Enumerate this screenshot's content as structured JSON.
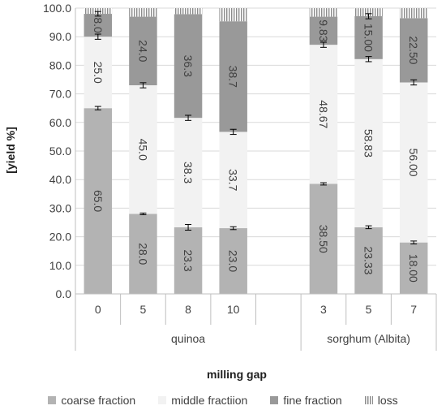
{
  "chart_data": {
    "type": "bar",
    "stacked": true,
    "ylabel": "[yield %]",
    "xlabel": "milling gap",
    "ylim": [
      0,
      100
    ],
    "yticks": [
      "0.0",
      "10.0",
      "20.0",
      "30.0",
      "40.0",
      "50.0",
      "60.0",
      "70.0",
      "80.0",
      "90.0",
      "100.0"
    ],
    "groups": [
      {
        "name": "quinoa",
        "categories": [
          "0",
          "5",
          "8",
          "10"
        ]
      },
      {
        "name": "sorghum (Albita)",
        "categories": [
          "3",
          "5",
          "7"
        ]
      }
    ],
    "legend_position": "bottom",
    "series": [
      {
        "name": "coarse fraction",
        "color": "#b3b3b3",
        "values": [
          65.0,
          28.0,
          23.3,
          23.0,
          38.5,
          23.33,
          18.0
        ],
        "labels": [
          "65.0",
          "28.0",
          "23.3",
          "23.0",
          "38.50",
          "23.33",
          "18.00"
        ],
        "errors": [
          0.6,
          0.3,
          1.0,
          0.5,
          0.4,
          0.5,
          0.5
        ]
      },
      {
        "name": "middle fractiion",
        "color": "#f2f2f2",
        "values": [
          25.0,
          45.0,
          38.3,
          33.7,
          48.67,
          58.83,
          56.0
        ],
        "labels": [
          "25.0",
          "45.0",
          "38.3",
          "33.7",
          "48.67",
          "58.83",
          "56.00"
        ],
        "errors": [
          0.9,
          0.9,
          0.9,
          0.9,
          0.9,
          0.9,
          0.9
        ]
      },
      {
        "name": "fine fraction",
        "color": "#999999",
        "values": [
          8.0,
          24.0,
          36.3,
          38.7,
          9.83,
          15.0,
          22.5
        ],
        "labels": [
          "8.0",
          "24.0",
          "36.3",
          "38.7",
          "9.83",
          "15.00",
          "22.50"
        ],
        "errors": [
          0.8,
          0,
          0,
          0,
          0,
          0.9,
          0
        ]
      },
      {
        "name": "loss",
        "color": "#c8c8c8",
        "values": [
          2.0,
          3.0,
          2.1,
          4.6,
          3.0,
          2.8,
          3.5
        ],
        "labels": [
          "",
          "",
          "",
          "",
          "",
          "",
          ""
        ],
        "errors": [
          0,
          0,
          0,
          0,
          0,
          0,
          0
        ]
      }
    ]
  }
}
